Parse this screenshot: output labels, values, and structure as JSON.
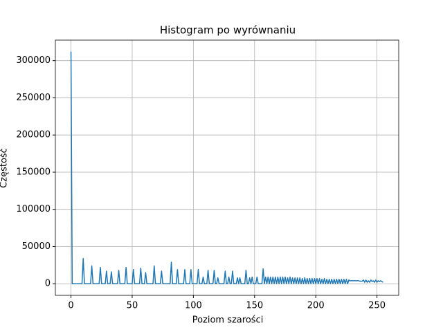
{
  "chart_data": {
    "type": "line",
    "title": "Histogram po wyrównaniu",
    "xlabel": "Poziom szarości",
    "ylabel": "Częstość",
    "x": [
      0,
      1,
      2,
      3,
      4,
      5,
      6,
      7,
      8,
      9,
      10,
      11,
      12,
      13,
      14,
      15,
      16,
      17,
      18,
      19,
      20,
      21,
      22,
      23,
      24,
      25,
      26,
      27,
      28,
      29,
      30,
      31,
      32,
      33,
      34,
      35,
      36,
      37,
      38,
      39,
      40,
      41,
      42,
      43,
      44,
      45,
      46,
      47,
      48,
      49,
      50,
      51,
      52,
      53,
      54,
      55,
      56,
      57,
      58,
      59,
      60,
      61,
      62,
      63,
      64,
      65,
      66,
      67,
      68,
      69,
      70,
      71,
      72,
      73,
      74,
      75,
      76,
      77,
      78,
      79,
      80,
      81,
      82,
      83,
      84,
      85,
      86,
      87,
      88,
      89,
      90,
      91,
      92,
      93,
      94,
      95,
      96,
      97,
      98,
      99,
      100,
      101,
      102,
      103,
      104,
      105,
      106,
      107,
      108,
      109,
      110,
      111,
      112,
      113,
      114,
      115,
      116,
      117,
      118,
      119,
      120,
      121,
      122,
      123,
      124,
      125,
      126,
      127,
      128,
      129,
      130,
      131,
      132,
      133,
      134,
      135,
      136,
      137,
      138,
      139,
      140,
      141,
      142,
      143,
      144,
      145,
      146,
      147,
      148,
      149,
      150,
      151,
      152,
      153,
      154,
      155,
      156,
      157,
      158,
      159,
      160,
      161,
      162,
      163,
      164,
      165,
      166,
      167,
      168,
      169,
      170,
      171,
      172,
      173,
      174,
      175,
      176,
      177,
      178,
      179,
      180,
      181,
      182,
      183,
      184,
      185,
      186,
      187,
      188,
      189,
      190,
      191,
      192,
      193,
      194,
      195,
      196,
      197,
      198,
      199,
      200,
      201,
      202,
      203,
      204,
      205,
      206,
      207,
      208,
      209,
      210,
      211,
      212,
      213,
      214,
      215,
      216,
      217,
      218,
      219,
      220,
      221,
      222,
      223,
      224,
      225,
      226,
      227,
      228,
      229,
      230,
      231,
      232,
      233,
      234,
      235,
      236,
      237,
      238,
      239,
      240,
      241,
      242,
      243,
      244,
      245,
      246,
      247,
      248,
      249,
      250,
      251,
      252,
      253,
      254,
      255
    ],
    "series": [
      {
        "color": "#1f77b4",
        "values": [
          312000,
          0,
          0,
          0,
          0,
          0,
          0,
          0,
          0,
          0,
          34000,
          0,
          0,
          0,
          0,
          0,
          0,
          24000,
          0,
          0,
          0,
          0,
          0,
          0,
          22000,
          0,
          0,
          0,
          0,
          17000,
          0,
          0,
          0,
          16000,
          0,
          0,
          0,
          0,
          0,
          18000,
          0,
          0,
          0,
          0,
          0,
          22000,
          0,
          0,
          0,
          0,
          0,
          19000,
          0,
          0,
          0,
          0,
          0,
          21000,
          0,
          0,
          0,
          15000,
          0,
          0,
          0,
          0,
          0,
          0,
          24000,
          0,
          0,
          0,
          0,
          0,
          17000,
          0,
          0,
          0,
          0,
          0,
          0,
          0,
          29000,
          0,
          0,
          0,
          0,
          19000,
          0,
          0,
          0,
          0,
          0,
          19000,
          0,
          0,
          0,
          0,
          19000,
          0,
          0,
          0,
          0,
          0,
          19000,
          0,
          0,
          0,
          9000,
          0,
          0,
          0,
          18000,
          0,
          0,
          0,
          0,
          18000,
          0,
          0,
          8000,
          0,
          0,
          0,
          0,
          0,
          17000,
          0,
          0,
          9000,
          0,
          0,
          17000,
          0,
          0,
          0,
          8000,
          0,
          8000,
          0,
          0,
          0,
          0,
          18000,
          0,
          0,
          8000,
          0,
          9000,
          0,
          0,
          0,
          9000,
          0,
          0,
          0,
          0,
          20000,
          0,
          9000,
          0,
          9000,
          0,
          9000,
          0,
          9000,
          0,
          9000,
          0,
          9000,
          0,
          9000,
          0,
          9000,
          0,
          9000,
          0,
          8000,
          0,
          9000,
          0,
          8000,
          0,
          8000,
          0,
          8000,
          0,
          8000,
          0,
          7000,
          0,
          8000,
          0,
          7000,
          0,
          7000,
          0,
          7000,
          0,
          7000,
          0,
          7000,
          0,
          7000,
          0,
          6000,
          0,
          7000,
          0,
          6000,
          0,
          6000,
          0,
          6000,
          0,
          6000,
          0,
          6000,
          0,
          6000,
          0,
          6000,
          0,
          6000,
          0,
          6000,
          0,
          5000,
          4000,
          4000,
          4000,
          4000,
          4000,
          4000,
          4000,
          4000,
          3500,
          3500,
          3500,
          5000,
          2000,
          5000,
          2000,
          4000,
          2000,
          5000,
          3000,
          4000,
          2000,
          5000,
          2000,
          4000,
          3000,
          4000,
          3000,
          2000
        ]
      }
    ],
    "xlim": [
      -12.75,
      267.75
    ],
    "ylim": [
      -15600,
      327600
    ],
    "xticks": [
      0,
      50,
      100,
      150,
      200,
      250
    ],
    "yticks": [
      0,
      50000,
      100000,
      150000,
      200000,
      250000,
      300000
    ],
    "grid": true
  }
}
